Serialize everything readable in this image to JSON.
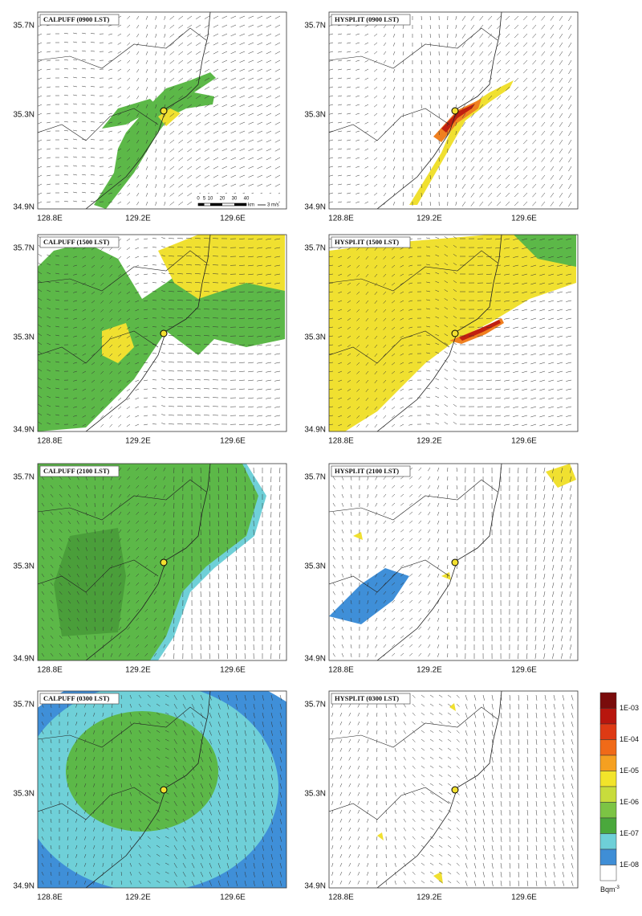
{
  "panels": [
    {
      "title": "CALPUFF (0900 LST)"
    },
    {
      "title": "HYSPLIT (0900 LST)"
    },
    {
      "title": "CALPUFF (1500 LST)"
    },
    {
      "title": "HYSPLIT (1500 LST)"
    },
    {
      "title": "CALPUFF (2100 LST)"
    },
    {
      "title": "HYSPLIT (2100 LST)"
    },
    {
      "title": "CALPUFF (0300 LST)"
    },
    {
      "title": "HYSPLIT (0300 LST)"
    }
  ],
  "lat_labels": [
    "35.7N",
    "35.3N",
    "34.9N"
  ],
  "lon_labels": [
    "128.8E",
    "129.2E",
    "129.6E"
  ],
  "scale_bar": {
    "ticks": [
      "0",
      "5",
      "10",
      "20",
      "30",
      "40"
    ],
    "unit": "km",
    "vector": "3 m/s"
  },
  "colorbar": {
    "labels": [
      "1E-03",
      "1E-04",
      "1E-05",
      "1E-06",
      "1E-07",
      "1E-08"
    ],
    "colors": [
      "#7a0c0c",
      "#b8160e",
      "#de3a14",
      "#f06a18",
      "#f5a020",
      "#f2e42a",
      "#c8dc3c",
      "#7cc444",
      "#4aa83c",
      "#6ed0d8",
      "#3f8ed6",
      "#ffffff"
    ],
    "unit": "Bqm",
    "unit_exponent": "-3"
  }
}
